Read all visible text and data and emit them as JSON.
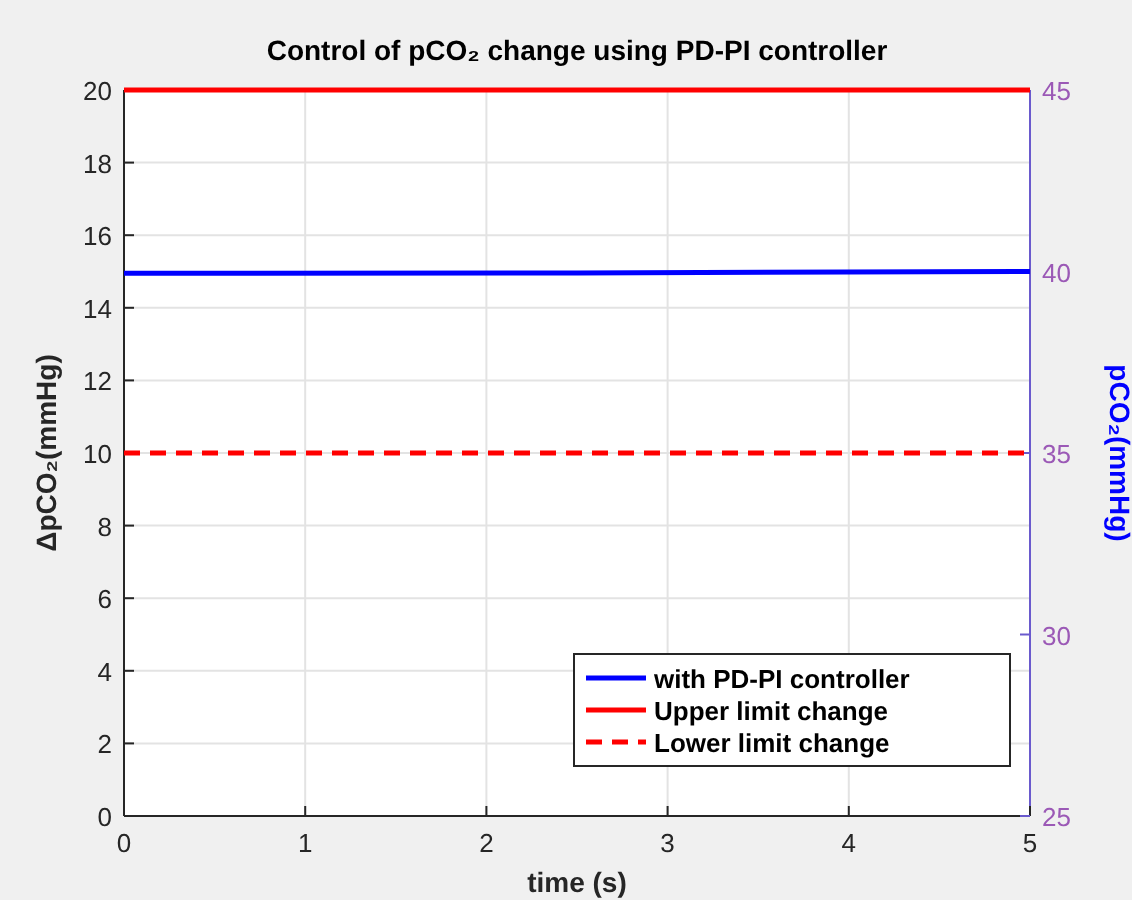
{
  "chart_data": {
    "type": "line",
    "title": "Control of pCO₂ change using PD-PI controller",
    "xlabel": "time (s)",
    "ylabel": "ΔpCO₂(mmHg)",
    "y2label": "pCO₂(mmHg)",
    "xlim": [
      0,
      5
    ],
    "xticks": [
      0,
      1,
      2,
      3,
      4,
      5
    ],
    "ylim": [
      0,
      20
    ],
    "yticks": [
      0,
      2,
      4,
      6,
      8,
      10,
      12,
      14,
      16,
      18,
      20
    ],
    "y2lim": [
      25,
      45
    ],
    "y2ticks": [
      25,
      30,
      35,
      40,
      45
    ],
    "grid": true,
    "legend": "bottom right",
    "series": [
      {
        "name": "with PD-PI controller",
        "color": "#0000ff",
        "x": [
          0,
          2.5,
          5
        ],
        "values": [
          14.95,
          14.96,
          15
        ],
        "line_style": "solid"
      },
      {
        "name": "Upper limit change",
        "color": "#ff0000",
        "x": [
          0,
          5
        ],
        "values": [
          20,
          20
        ],
        "line_style": "solid"
      },
      {
        "name": "Lower limit change",
        "color": "#ff0000",
        "x": [
          0,
          5
        ],
        "values": [
          10,
          10
        ],
        "line_style": "dashed"
      }
    ]
  }
}
